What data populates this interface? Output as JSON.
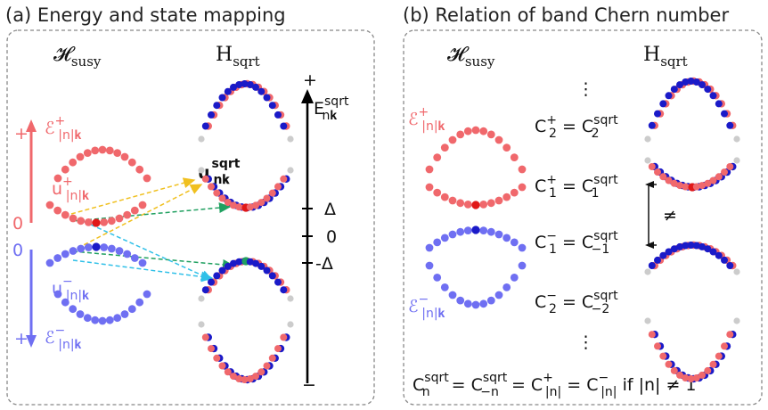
{
  "panel_a": {
    "title": "(a)  Energy and state mapping",
    "header_susy": "𝓗",
    "header_susy_sub": "susy",
    "header_sqrt": "H",
    "header_sqrt_sub": "sqrt",
    "eps_plus": "ℰ",
    "eps_plus_sup": "+",
    "eps_plus_sub": "|n|𝐤",
    "u_plus": "u",
    "u_plus_sup": "+",
    "u_plus_sub": "|n|𝐤",
    "eps_minus": "ℰ",
    "eps_minus_sup": "−",
    "eps_minus_sub": "|n|𝐤",
    "u_minus": "u",
    "u_minus_sup": "−",
    "u_minus_sub": "|n|𝐤",
    "u_sqrt": "u",
    "u_sqrt_sup": "sqrt",
    "u_sqrt_sub": "n𝐤",
    "E_sqrt": "E",
    "E_sqrt_sup": "sqrt",
    "E_sqrt_sub": "n𝐤",
    "tick_delta": "Δ",
    "tick_zero": "0",
    "tick_minus_delta": "-Δ",
    "axis_top": "+",
    "axis_bottom": "−",
    "red_plus": "+",
    "red_zero": "0",
    "blue_zero": "0",
    "blue_plus": "+"
  },
  "panel_b": {
    "title": "(b) Relation of band Chern number",
    "header_susy": "𝓗",
    "header_susy_sub": "susy",
    "header_sqrt": "H",
    "header_sqrt_sub": "sqrt",
    "eps_plus": "ℰ",
    "eps_plus_sup": "+",
    "eps_plus_sub": "|n|𝐤",
    "eps_minus": "ℰ",
    "eps_minus_sup": "−",
    "eps_minus_sub": "|n|𝐤",
    "vdots_top": "⋮",
    "vdots_bottom": "⋮",
    "eq_c2p_lhs": "C",
    "eq_c2p_lhs_sub": "2",
    "eq_c2p_lhs_sup": "+",
    "eq_c2p_rhs": "= C",
    "eq_c2p_rhs_sub": "2",
    "eq_c2p_rhs_sup": "sqrt",
    "eq_c1p_lhs": "C",
    "eq_c1p_lhs_sub": "1",
    "eq_c1p_lhs_sup": "+",
    "eq_c1p_rhs": "= C",
    "eq_c1p_rhs_sub": "1",
    "eq_c1p_rhs_sup": "sqrt",
    "eq_c1m_lhs": "C",
    "eq_c1m_lhs_sub": "1",
    "eq_c1m_lhs_sup": "−",
    "eq_c1m_rhs": "= C",
    "eq_c1m_rhs_sub": "−1",
    "eq_c1m_rhs_sup": "sqrt",
    "eq_c2m_lhs": "C",
    "eq_c2m_lhs_sub": "2",
    "eq_c2m_lhs_sup": "−",
    "eq_c2m_rhs": "= C",
    "eq_c2m_rhs_sub": "−2",
    "eq_c2m_rhs_sup": "sqrt",
    "neq": "≠",
    "bottom_C1": "C",
    "bottom_C1_sub": "n",
    "bottom_C1_sup": "sqrt",
    "bottom_eq1": " = C",
    "bottom_C2_sub": "−n",
    "bottom_C2_sup": "sqrt",
    "bottom_eq2": " = C",
    "bottom_C3_sub": "|n|",
    "bottom_C3_sup": "+",
    "bottom_eq3": " = C",
    "bottom_C4_sub": "|n|",
    "bottom_C4_sup": "−",
    "bottom_cond": " if |n| ≠ 1"
  },
  "colors": {
    "red": "#f0686c",
    "blue": "#6f6ff2",
    "navy": "#1a1ac8",
    "dark_red": "#e01818",
    "gold": "#f0c020",
    "green": "#20a060",
    "cyan": "#30c0e8"
  }
}
